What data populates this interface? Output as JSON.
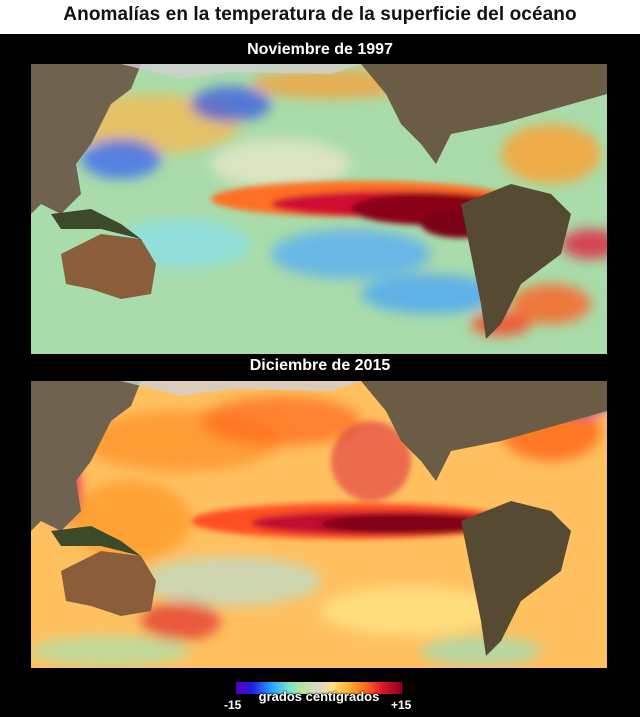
{
  "title": "Anomalías en la temperatura de la superficie del océano",
  "maps": [
    {
      "title": "Noviembre de 1997"
    },
    {
      "title": "Diciembre de 2015"
    }
  ],
  "legend": {
    "label": "grados centígrados",
    "min": "-15",
    "max": "+15",
    "colors": [
      "#5a00b8",
      "#2020e0",
      "#2aa8ff",
      "#7fe0d0",
      "#b4e6a0",
      "#d8d8c8",
      "#ffe080",
      "#ffb030",
      "#ff6a20",
      "#e01828",
      "#8c0020"
    ]
  }
}
